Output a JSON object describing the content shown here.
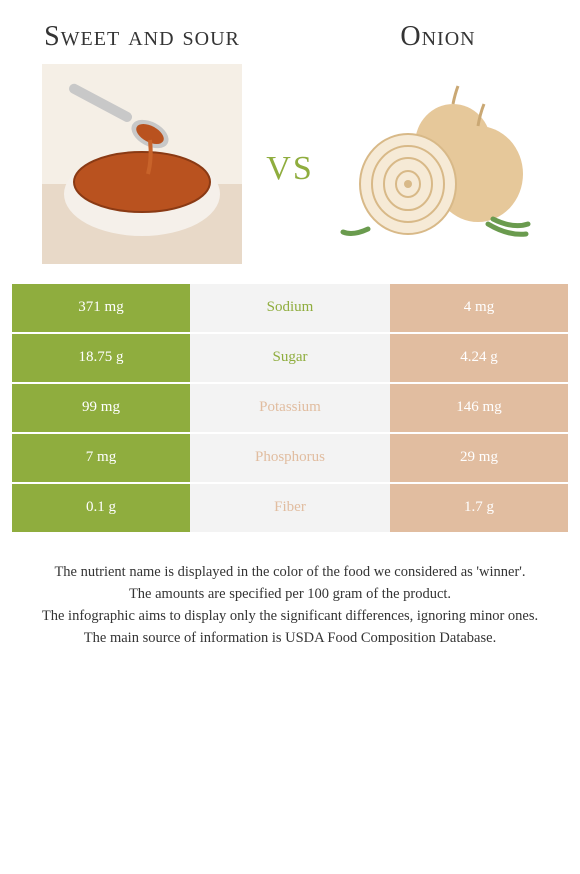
{
  "left_food": {
    "title": "Sweet and sour",
    "color": "#8fad3e"
  },
  "right_food": {
    "title": "Onion",
    "color": "#e1bda0"
  },
  "vs_label": "vs",
  "vs_color": "#8fad3e",
  "rows": [
    {
      "nutrient": "Sodium",
      "left": "371 mg",
      "right": "4 mg",
      "winner": "left"
    },
    {
      "nutrient": "Sugar",
      "left": "18.75 g",
      "right": "4.24 g",
      "winner": "left"
    },
    {
      "nutrient": "Potassium",
      "left": "99 mg",
      "right": "146 mg",
      "winner": "right"
    },
    {
      "nutrient": "Phosphorus",
      "left": "7 mg",
      "right": "29 mg",
      "winner": "right"
    },
    {
      "nutrient": "Fiber",
      "left": "0.1 g",
      "right": "1.7 g",
      "winner": "right"
    }
  ],
  "footnotes": [
    "The nutrient name is displayed in the color of the food we considered as 'winner'.",
    "The amounts are specified per 100 gram of the product.",
    "The infographic aims to display only the significant differences, ignoring minor ones.",
    "The main source of information is USDA Food Composition Database."
  ],
  "mid_bg": "#f3f3f3",
  "sauce_colors": {
    "bowl": "#f5f0ea",
    "sauce": "#b9521f",
    "spoon": "#c8c8c8",
    "table": "#e8d9c8"
  },
  "onion_colors": {
    "outer": "#e6c89a",
    "inner": "#f6ead6",
    "rings": "#d8b988",
    "leaf": "#6a9b4e"
  }
}
